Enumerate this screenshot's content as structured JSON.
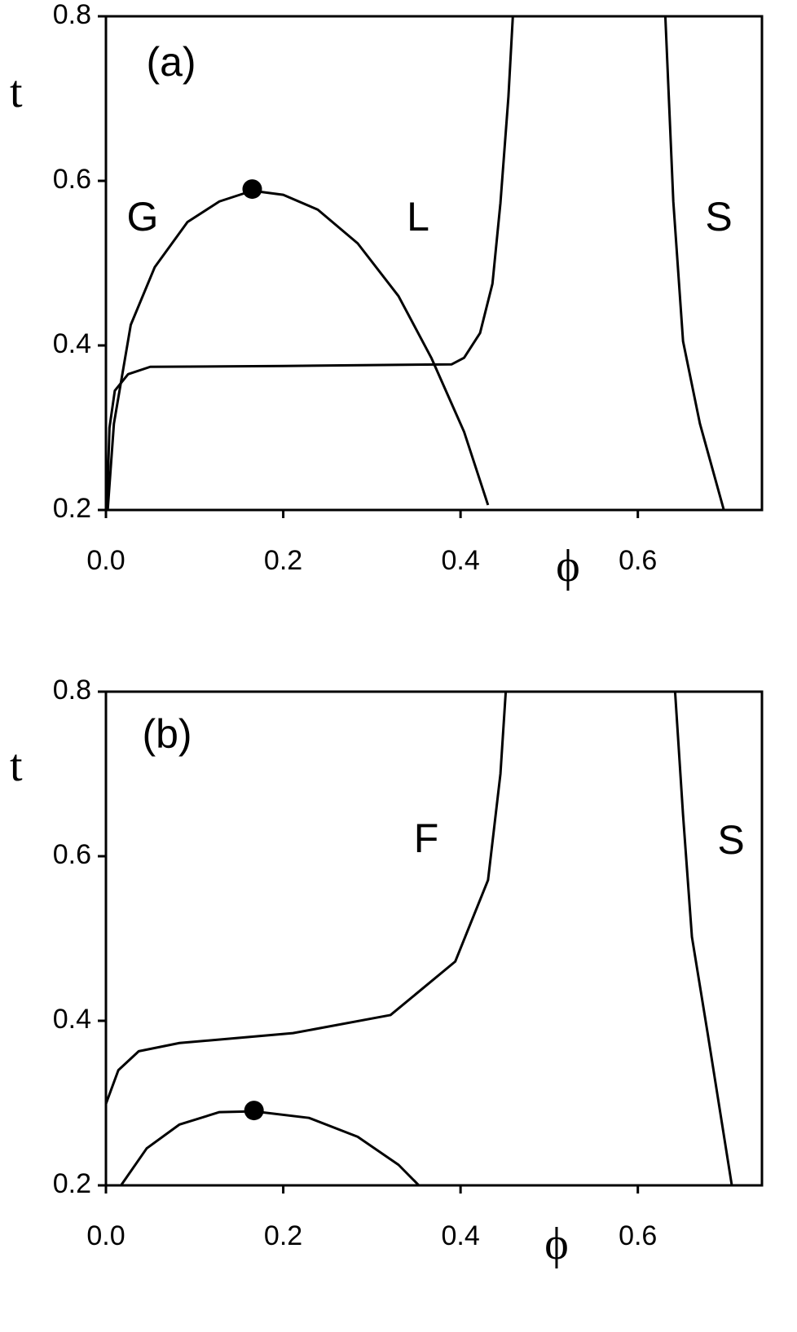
{
  "chart_data": [
    {
      "type": "line",
      "annotations": [
        "(a)",
        "G",
        "L",
        "S"
      ],
      "xlabel": "ϕ",
      "ylabel": "t",
      "xlim": [
        0,
        0.74
      ],
      "ylim": [
        0.2,
        0.8
      ],
      "xticks": [
        {
          "value": 0,
          "label": "0.0"
        },
        0.2,
        0.4,
        0.6
      ],
      "yticks": [
        0.2,
        0.4,
        0.6,
        0.8
      ],
      "series": [
        {
          "color": "#000000",
          "x": [
            0.002,
            0.009,
            0.028,
            0.055,
            0.092,
            0.128,
            0.165,
            0.2,
            0.239,
            0.284,
            0.33,
            0.367,
            0.404,
            0.431
          ],
          "values": [
            0.2,
            0.305,
            0.425,
            0.495,
            0.55,
            0.575,
            0.588,
            0.583,
            0.565,
            0.524,
            0.46,
            0.385,
            0.295,
            0.206
          ]
        },
        {
          "color": "#000000",
          "x": [
            0.001,
            0.004,
            0.01,
            0.025,
            0.05,
            0.2,
            0.39,
            0.404,
            0.422,
            0.436,
            0.445,
            0.454,
            0.459
          ],
          "values": [
            0.2,
            0.3,
            0.345,
            0.365,
            0.374,
            0.375,
            0.377,
            0.385,
            0.415,
            0.475,
            0.573,
            0.702,
            0.8
          ]
        },
        {
          "color": "#000000",
          "x": [
            0.631,
            0.64,
            0.651,
            0.67,
            0.697
          ],
          "values": [
            0.8,
            0.575,
            0.405,
            0.305,
            0.2
          ]
        }
      ],
      "points": {
        "color": "#000000",
        "x": [
          0.165
        ],
        "values": [
          0.59
        ]
      }
    },
    {
      "type": "line",
      "annotations": [
        "(b)",
        "F",
        "S"
      ],
      "xlabel": "ϕ",
      "ylabel": "t",
      "xlim": [
        0,
        0.74
      ],
      "ylim": [
        0.2,
        0.8
      ],
      "xticks": [
        {
          "value": 0,
          "label": "0.0"
        },
        0.2,
        0.4,
        0.6
      ],
      "yticks": [
        0.2,
        0.4,
        0.6,
        0.8
      ],
      "series": [
        {
          "color": "#000000",
          "x": [
            0,
            0.014,
            0.037,
            0.083,
            0.211,
            0.321,
            0.394,
            0.431,
            0.445,
            0.451
          ],
          "values": [
            0.299,
            0.34,
            0.363,
            0.373,
            0.385,
            0.407,
            0.472,
            0.571,
            0.7,
            0.8
          ]
        },
        {
          "color": "#000000",
          "x": [
            0.017,
            0.046,
            0.083,
            0.128,
            0.167,
            0.229,
            0.284,
            0.33,
            0.353
          ],
          "values": [
            0.2,
            0.245,
            0.274,
            0.289,
            0.29,
            0.282,
            0.259,
            0.225,
            0.2
          ]
        },
        {
          "color": "#000000",
          "x": [
            0.642,
            0.651,
            0.661,
            0.679,
            0.706
          ],
          "values": [
            0.8,
            0.65,
            0.502,
            0.383,
            0.2
          ]
        }
      ],
      "points": {
        "color": "#000000",
        "x": [
          0.167
        ],
        "values": [
          0.291
        ]
      }
    }
  ]
}
